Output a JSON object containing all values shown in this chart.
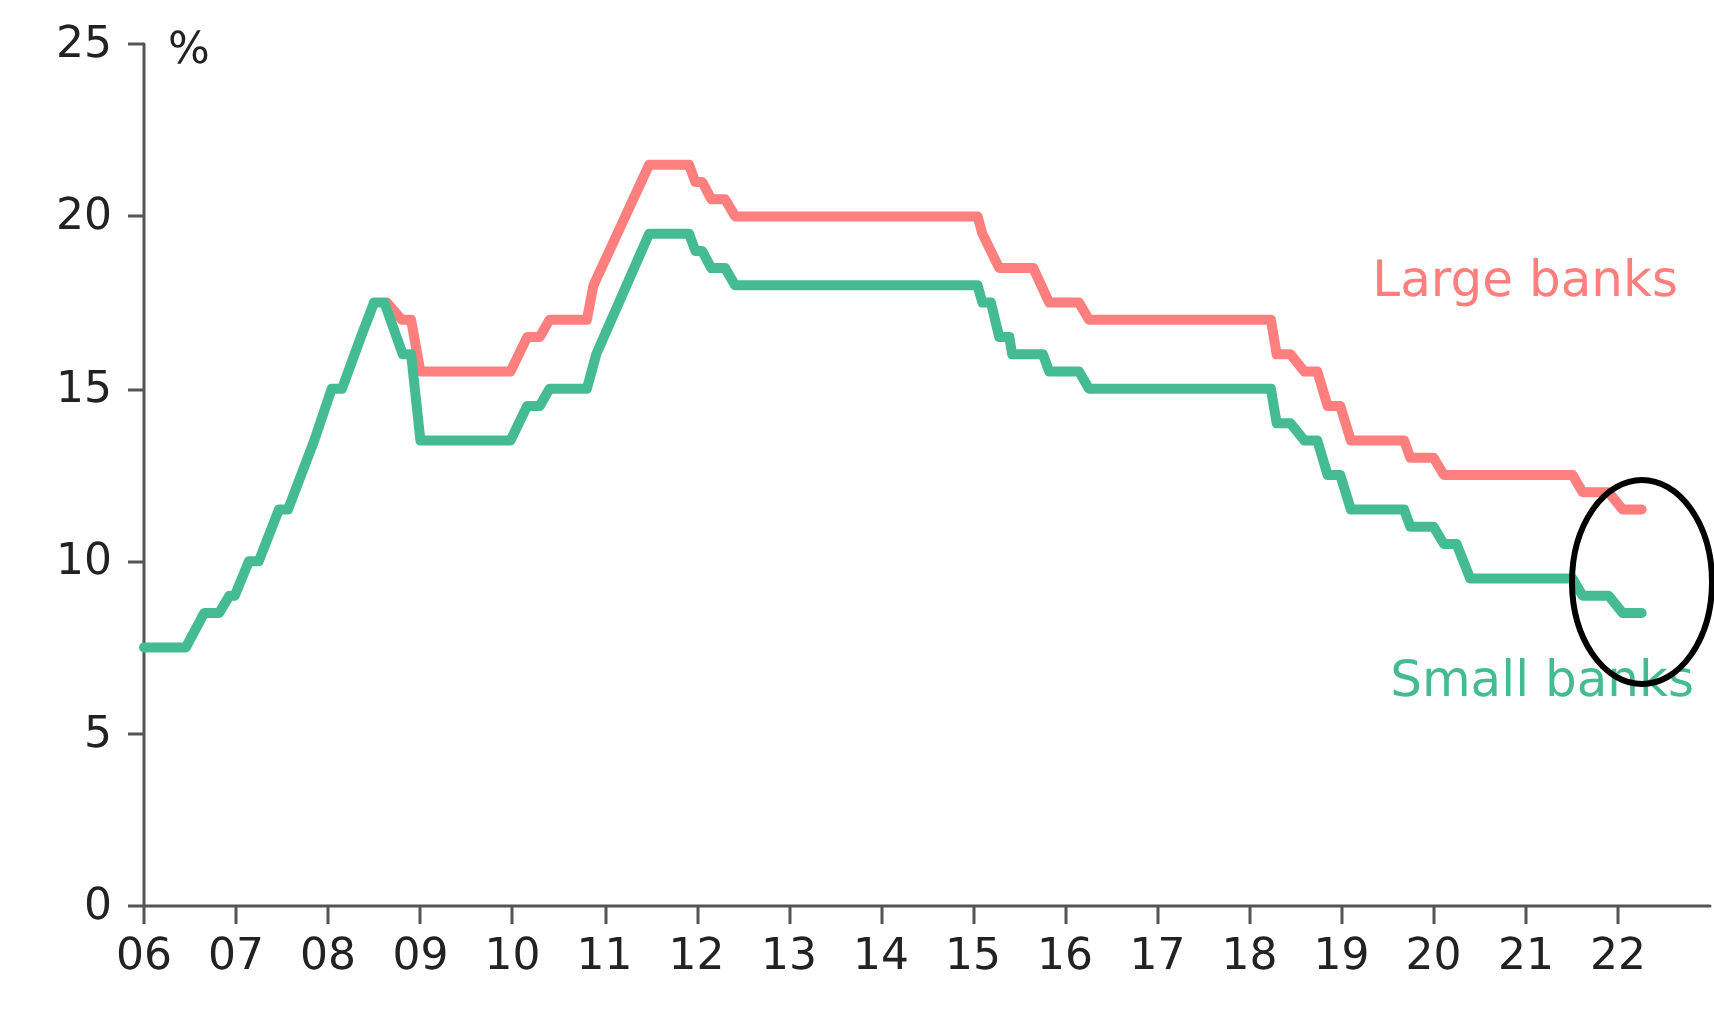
{
  "chart_data": {
    "type": "line",
    "ylabel": "%",
    "series": [
      {
        "name": "Large banks",
        "color": "#ff7f7f",
        "x": [
          "2008-08-21",
          "2008-10-19",
          "2008-11-25",
          "2009-01-01",
          "2009-12-24",
          "2010-02-28",
          "2010-04-19",
          "2010-05-28",
          "2010-10-23",
          "2010-11-18",
          "2011-06-27",
          "2011-12-02",
          "2011-12-27",
          "2012-01-23",
          "2012-02-28",
          "2012-04-23",
          "2012-06-02",
          "2015-01-19",
          "2015-02-07",
          "2015-04-15",
          "2015-08-28",
          "2015-10-30",
          "2016-02-25",
          "2016-04-05",
          "2018-03-27",
          "2018-04-19",
          "2018-06-13",
          "2018-08-07",
          "2018-09-27",
          "2018-11-07",
          "2018-12-27",
          "2019-02-07",
          "2019-09-06",
          "2019-10-01",
          "2020-01-01",
          "2020-02-11",
          "2021-07-05",
          "2021-08-14",
          "2021-11-25",
          "2022-01-19",
          "2022-04-05"
        ],
        "values": [
          17.5,
          17,
          17,
          15.5,
          15.5,
          16.5,
          16.5,
          17,
          17,
          18,
          21.5,
          21.5,
          21,
          21,
          20.5,
          20.5,
          20,
          20,
          19.5,
          18.5,
          18.5,
          17.5,
          17.5,
          17,
          17,
          16,
          16,
          15.5,
          15.5,
          14.5,
          14.5,
          13.5,
          13.5,
          13,
          13,
          12.5,
          12.5,
          12,
          12,
          11.5,
          11.5
        ]
      },
      {
        "name": "Small banks",
        "color": "#45bb94",
        "x": [
          "2006-01-01",
          "2006-06-16",
          "2006-08-28",
          "2006-10-26",
          "2006-12-06",
          "2006-12-27",
          "2007-02-21",
          "2007-04-01",
          "2007-06-20",
          "2007-07-26",
          "2007-11-07",
          "2008-01-15",
          "2008-02-25",
          "2008-05-10",
          "2008-07-01",
          "2008-08-11",
          "2008-10-23",
          "2008-11-25",
          "2009-01-01",
          "2009-12-24",
          "2010-02-28",
          "2010-04-19",
          "2010-05-28",
          "2010-10-23",
          "2010-11-29",
          "2011-06-27",
          "2011-12-02",
          "2011-12-27",
          "2012-01-23",
          "2012-02-28",
          "2012-04-23",
          "2012-06-02",
          "2015-01-19",
          "2015-02-07",
          "2015-03-13",
          "2015-04-15",
          "2015-05-25",
          "2015-06-05",
          "2015-10-05",
          "2015-10-30",
          "2016-02-25",
          "2016-04-05",
          "2018-03-27",
          "2018-04-19",
          "2018-06-13",
          "2018-08-07",
          "2018-09-27",
          "2018-11-07",
          "2018-12-27",
          "2019-02-07",
          "2019-09-06",
          "2019-10-01",
          "2020-01-01",
          "2020-02-11",
          "2020-04-01",
          "2020-05-25",
          "2021-07-05",
          "2021-08-14",
          "2021-11-25",
          "2022-01-19",
          "2022-04-05"
        ],
        "values": [
          7.5,
          7.5,
          8.5,
          8.5,
          9,
          9,
          10,
          10,
          11.5,
          11.5,
          13.5,
          15,
          15,
          16.5,
          17.5,
          17.5,
          16,
          16,
          13.5,
          13.5,
          14.5,
          14.5,
          15,
          15,
          16,
          19.5,
          19.5,
          19,
          19,
          18.5,
          18.5,
          18,
          18,
          17.5,
          17.5,
          16.5,
          16.5,
          16,
          16,
          15.5,
          15.5,
          15,
          15,
          14,
          14,
          13.5,
          13.5,
          12.5,
          12.5,
          11.5,
          11.5,
          11,
          11,
          10.5,
          10.5,
          9.5,
          9.5,
          9,
          9,
          8.5,
          8.5
        ]
      }
    ],
    "xlim": [
      "2006",
      "2023"
    ],
    "xticks": [
      {
        "value": "2006",
        "label": "06"
      },
      {
        "value": "2007",
        "label": "07"
      },
      {
        "value": "2008",
        "label": "08"
      },
      {
        "value": "2009",
        "label": "09"
      },
      {
        "value": "2010",
        "label": "10"
      },
      {
        "value": "2011",
        "label": "11"
      },
      {
        "value": "2012",
        "label": "12"
      },
      {
        "value": "2013",
        "label": "13"
      },
      {
        "value": "2014",
        "label": "14"
      },
      {
        "value": "2015",
        "label": "15"
      },
      {
        "value": "2016",
        "label": "16"
      },
      {
        "value": "2017",
        "label": "17"
      },
      {
        "value": "2018",
        "label": "18"
      },
      {
        "value": "2019",
        "label": "19"
      },
      {
        "value": "2020",
        "label": "20"
      },
      {
        "value": "2021",
        "label": "21"
      },
      {
        "value": "2022",
        "label": "22"
      }
    ],
    "ylim": [
      0,
      25
    ],
    "yticks": [
      0,
      5,
      10,
      15,
      20,
      25
    ],
    "grid": false,
    "legend": false,
    "marker": "none",
    "line_style": "solid"
  }
}
